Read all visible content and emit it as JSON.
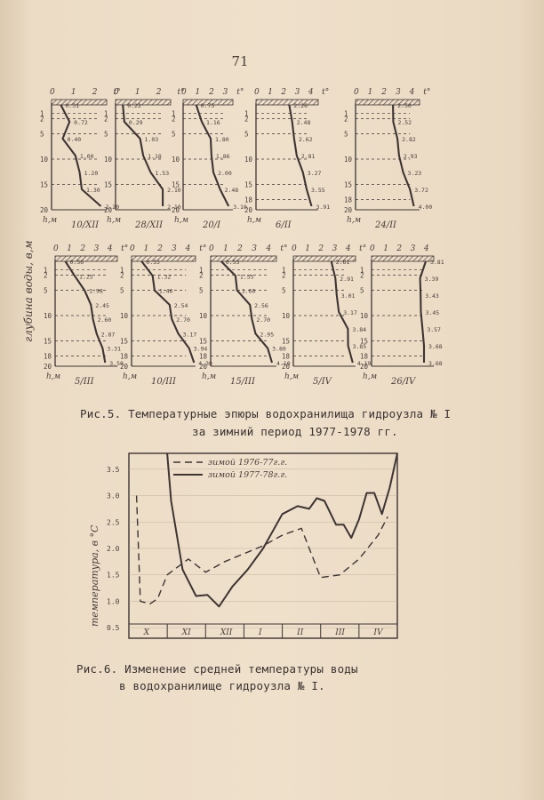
{
  "page_number": "71",
  "figure5": {
    "y_label": "глубина воды, в,м",
    "depth_label": "h,м",
    "temp_unit": "t°",
    "caption_line1": "Рис.5. Температурные эпюры водохранилища гидроузла № I",
    "caption_line2": "за зимний период 1977-1978 гг.",
    "profiles": [
      {
        "date": "10/XII",
        "ticks": [
          "0",
          "1",
          "2",
          "t°"
        ],
        "depth_ticks": [
          "1",
          "2",
          "5",
          "10",
          "15",
          "20"
        ],
        "temps": [
          "0.31",
          "0.72",
          "0.40",
          "1.00",
          "1.20",
          "1.30",
          "2.20"
        ]
      },
      {
        "date": "28/XII",
        "ticks": [
          "0",
          "1",
          "2",
          "t°"
        ],
        "depth_ticks": [
          "1",
          "2",
          "5",
          "10",
          "15",
          "20"
        ],
        "temps": [
          "0.22",
          "0.29",
          "1.03",
          "1.18",
          "1.53",
          "2.10",
          "2.10"
        ]
      },
      {
        "date": "20/I",
        "ticks": [
          "0",
          "1",
          "2",
          "3",
          "t°"
        ],
        "depth_ticks": [
          "1",
          "2",
          "5",
          "10",
          "15",
          "20"
        ],
        "temps": [
          "0.75",
          "1.16",
          "1.80",
          "1.86",
          "2.00",
          "2.48",
          "3.10"
        ]
      },
      {
        "date": "6/II",
        "ticks": [
          "0",
          "1",
          "2",
          "3",
          "4",
          "t°"
        ],
        "depth_ticks": [
          "1",
          "2",
          "5",
          "10",
          "15",
          "18",
          "20"
        ],
        "temps": [
          "2.26",
          "2.48",
          "2.62",
          "2.81",
          "3.27",
          "3.55",
          "3.91"
        ]
      },
      {
        "date": "24/II",
        "ticks": [
          "0",
          "1",
          "2",
          "3",
          "4",
          "t°"
        ],
        "depth_ticks": [
          "1",
          "2",
          "5",
          "10",
          "15",
          "18",
          "20"
        ],
        "temps": [
          "2.50",
          "2.52",
          "2.82",
          "2.93",
          "3.23",
          "3.72",
          "4.00"
        ]
      },
      {
        "date": "5/III",
        "ticks": [
          "0",
          "1",
          "2",
          "3",
          "4",
          "t°"
        ],
        "depth_ticks": [
          "1",
          "2",
          "5",
          "10",
          "15",
          "18",
          "20"
        ],
        "temps": [
          "0.56",
          "1.25",
          "1.98",
          "2.45",
          "2.60",
          "2.87",
          "3.31",
          "3.50"
        ]
      },
      {
        "date": "10/III",
        "ticks": [
          "0",
          "1",
          "2",
          "3",
          "4",
          "t°"
        ],
        "depth_ticks": [
          "1",
          "2",
          "5",
          "10",
          "15",
          "18",
          "20"
        ],
        "temps": [
          "0.53",
          "1.32",
          "1.46",
          "2.54",
          "2.70",
          "3.17",
          "3.94",
          "4.30"
        ]
      },
      {
        "date": "15/III",
        "ticks": [
          "0",
          "1",
          "2",
          "3",
          "4",
          "t°"
        ],
        "depth_ticks": [
          "1",
          "2",
          "5",
          "10",
          "15",
          "18",
          "20"
        ],
        "temps": [
          "0.55",
          "1.55",
          "1.66",
          "2.56",
          "2.70",
          "2.95",
          "3.80",
          "4.10"
        ]
      },
      {
        "date": "5/IV",
        "ticks": [
          "0",
          "1",
          "2",
          "3",
          "4",
          "t°"
        ],
        "depth_ticks": [
          "1",
          "2",
          "5",
          "10",
          "15",
          "18",
          "20"
        ],
        "temps": [
          "2.61",
          "2.91",
          "3.01",
          "3.17",
          "3.84",
          "3.85",
          "4.19"
        ]
      },
      {
        "date": "26/IV",
        "ticks": [
          "0",
          "1",
          "2",
          "3",
          "4"
        ],
        "depth_ticks": [
          "1",
          "2",
          "5",
          "10",
          "15",
          "18",
          "20"
        ],
        "temps": [
          "3.81",
          "3.39",
          "3.43",
          "3.45",
          "3.57",
          "3.68",
          "3.68"
        ]
      }
    ]
  },
  "figure6": {
    "caption_line1": "Рис.6. Изменение средней температуры воды",
    "caption_line2": "в водохранилище гидроузла № I.",
    "chart_data": {
      "type": "line",
      "ylabel": "температура, в °С",
      "xlabel": "",
      "categories": [
        "X",
        "XI",
        "XII",
        "I",
        "II",
        "III",
        "IV"
      ],
      "yticks": [
        "0.5",
        "1.0",
        "1.5",
        "2.0",
        "2.5",
        "3.0",
        "3.5"
      ],
      "ylim": [
        0.3,
        3.8
      ],
      "x_domain": [
        0,
        7
      ],
      "grid": true,
      "legend": "top",
      "series": [
        {
          "name": "зимой 1976-77г.г.",
          "style": "dashed",
          "x": [
            0.2,
            0.3,
            0.55,
            0.75,
            1.0,
            1.55,
            2.0,
            2.5,
            3.0,
            3.5,
            4.0,
            4.5,
            5.0,
            5.5,
            6.0,
            6.5,
            6.75
          ],
          "y": [
            3.0,
            1.0,
            0.95,
            1.05,
            1.5,
            1.8,
            1.55,
            1.75,
            1.9,
            2.05,
            2.25,
            2.38,
            1.45,
            1.5,
            1.8,
            2.25,
            2.6
          ]
        },
        {
          "name": "зимой 1977-78г.г.",
          "style": "solid",
          "x": [
            1.0,
            1.1,
            1.4,
            1.75,
            2.05,
            2.35,
            2.7,
            3.1,
            3.5,
            4.0,
            4.4,
            4.7,
            4.9,
            5.1,
            5.4,
            5.6,
            5.8,
            6.0,
            6.2,
            6.4,
            6.6,
            6.8,
            7.0
          ],
          "y": [
            3.9,
            2.9,
            1.6,
            1.1,
            1.12,
            0.9,
            1.28,
            1.6,
            2.0,
            2.65,
            2.8,
            2.75,
            2.95,
            2.9,
            2.45,
            2.45,
            2.2,
            2.55,
            3.05,
            3.05,
            2.65,
            3.15,
            3.9
          ]
        }
      ]
    }
  }
}
